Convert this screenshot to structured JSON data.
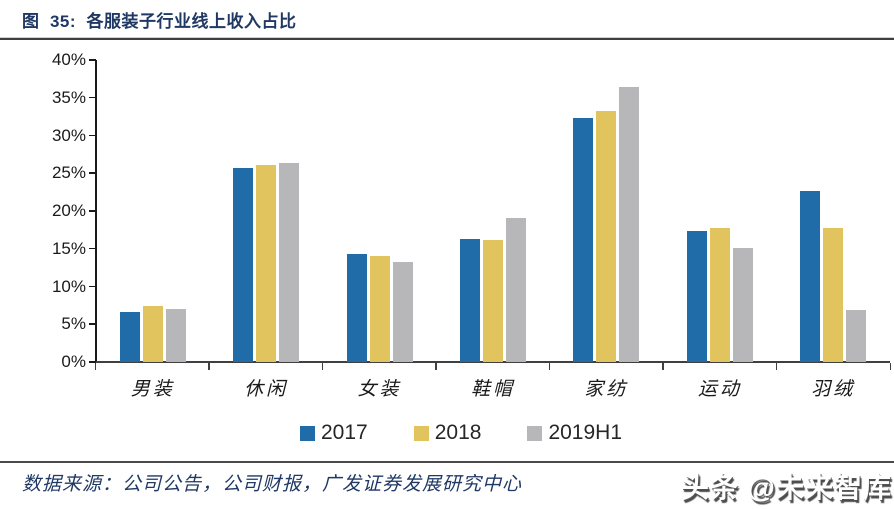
{
  "header": {
    "title": "图  35:  各服装子行业线上收入占比"
  },
  "chart_data": {
    "type": "bar",
    "title": "各服装子行业线上收入占比",
    "categories": [
      "男装",
      "休闲",
      "女装",
      "鞋帽",
      "家纺",
      "运动",
      "羽绒"
    ],
    "series": [
      {
        "name": "2017",
        "color": "#1f6ca9",
        "values": [
          6.6,
          25.7,
          14.3,
          16.3,
          32.3,
          17.3,
          22.6
        ]
      },
      {
        "name": "2018",
        "color": "#e2c45e",
        "values": [
          7.4,
          26.1,
          14.1,
          16.1,
          33.2,
          17.8,
          17.8
        ]
      },
      {
        "name": "2019H1",
        "color": "#b7b7b9",
        "values": [
          7.0,
          26.3,
          13.3,
          19.1,
          36.4,
          15.1,
          6.9
        ]
      }
    ],
    "xlabel": "",
    "ylabel": "",
    "ylim": [
      0,
      40
    ],
    "ytick_step": 5,
    "ytick_labels": [
      "0%",
      "5%",
      "10%",
      "15%",
      "20%",
      "25%",
      "30%",
      "35%",
      "40%"
    ],
    "grid": false,
    "legend_position": "bottom"
  },
  "footer": {
    "source": "数据来源：公司公告，公司财报，广发证券发展研究中心",
    "watermark": "头条 @未来智库"
  },
  "colors": {
    "title_navy": "#1f3864",
    "bar_blue": "#1f6ca9",
    "bar_yellow": "#e2c45e",
    "bar_gray": "#b7b7b9",
    "axis": "#1a1a1a"
  }
}
